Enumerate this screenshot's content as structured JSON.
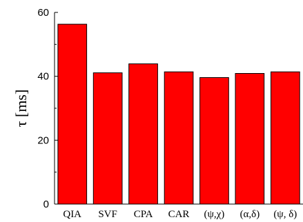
{
  "chart_data": {
    "type": "bar",
    "categories": [
      "QIA",
      "SVF",
      "CPA",
      "CAR",
      "(ψ,χ)",
      "(α,δ)",
      "(ψ, δ)"
    ],
    "values": [
      56.3,
      41.1,
      43.9,
      41.4,
      39.6,
      40.9,
      41.4
    ],
    "title": "",
    "xlabel": "",
    "ylabel": "τ [ms]",
    "ylim": [
      0,
      60
    ],
    "yticks": [
      0,
      20,
      40,
      60
    ],
    "grid": false,
    "bar_color": "#ff0000",
    "bar_edge_color": "#000000"
  }
}
